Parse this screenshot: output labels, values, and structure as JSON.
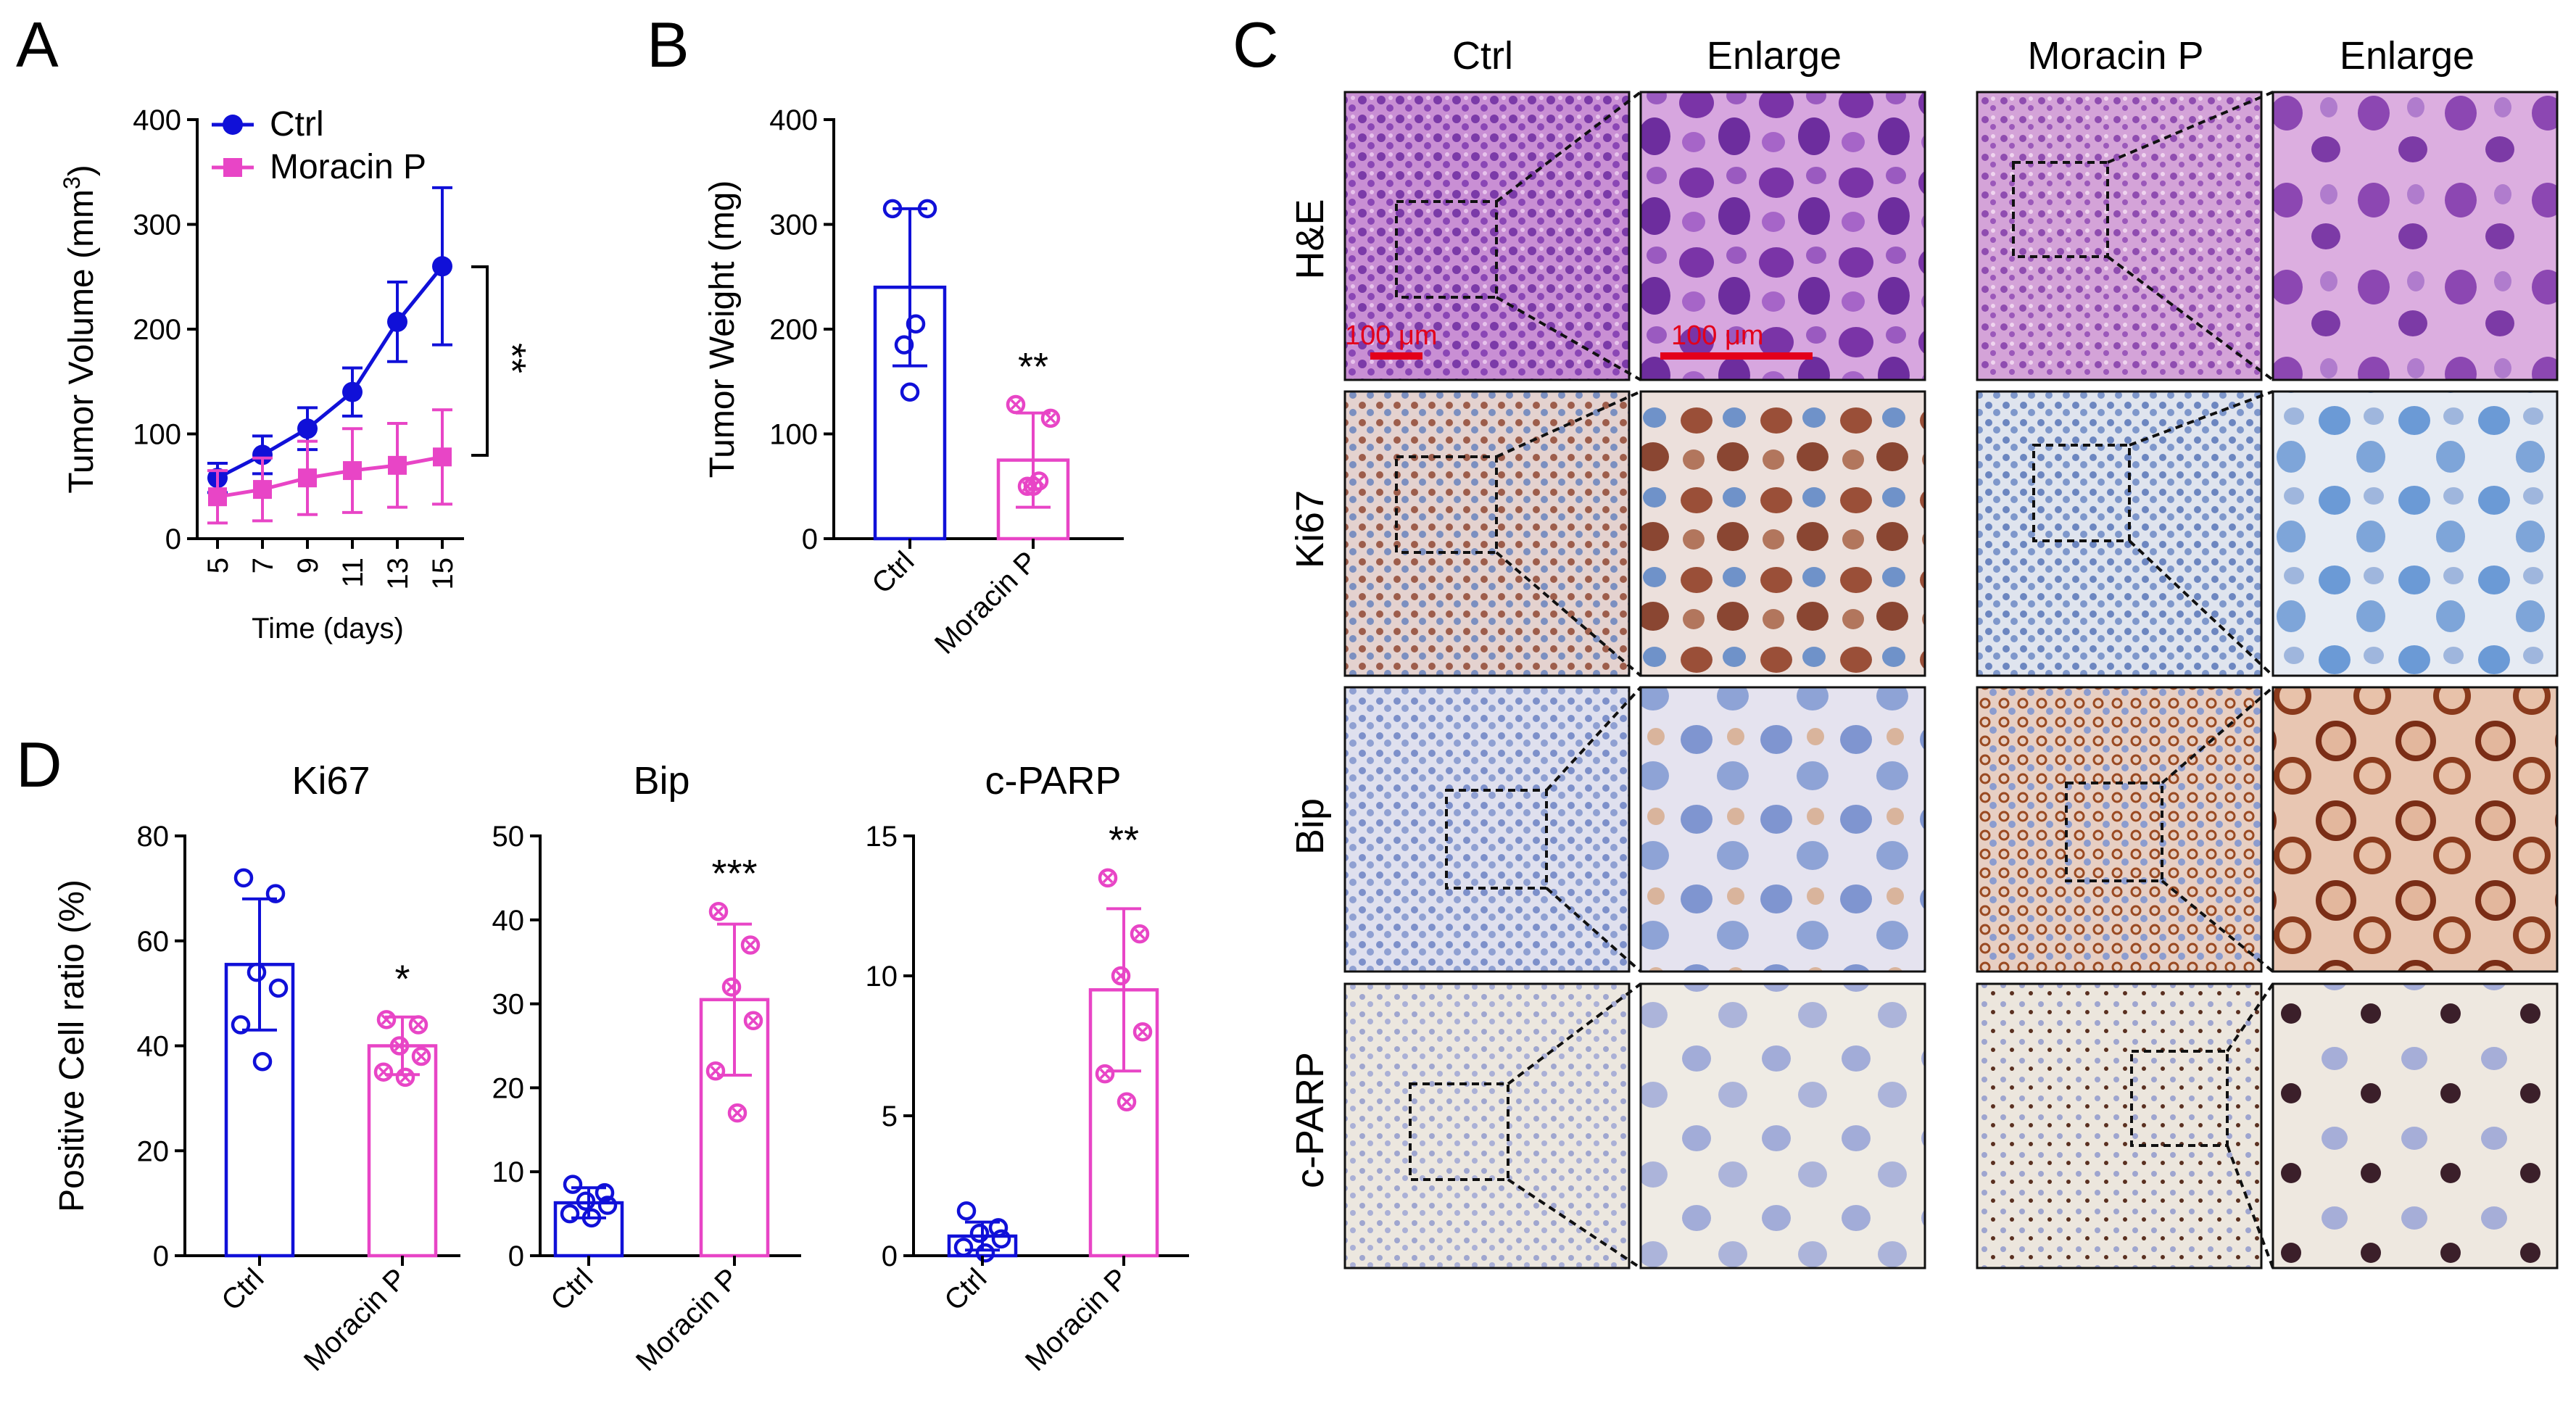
{
  "panels": {
    "a": "A",
    "b": "B",
    "c": "C",
    "d": "D"
  },
  "colors": {
    "ctrl": "#1010d8",
    "moracin": "#e845c6",
    "scale": "#e3001b"
  },
  "chart_data": [
    {
      "id": "A",
      "type": "line",
      "x": [
        5,
        7,
        9,
        11,
        13,
        15
      ],
      "xticklabels": [
        "5",
        "7",
        "9",
        "11",
        "13",
        "15"
      ],
      "xlabel": "Time (days)",
      "ylabel": "Tumor Volume (mm",
      "ylabel_sup": "3",
      "ylabel_close": ")",
      "ylim": [
        0,
        400
      ],
      "yticks": [
        0,
        100,
        200,
        300,
        400
      ],
      "yticklabels": [
        "0",
        "100",
        "200",
        "300",
        "400"
      ],
      "series": [
        {
          "name": "Ctrl",
          "values": [
            58,
            80,
            105,
            140,
            207,
            260
          ],
          "err": [
            14,
            18,
            20,
            23,
            38,
            75
          ]
        },
        {
          "name": "Moracin P",
          "values": [
            40,
            47,
            58,
            65,
            70,
            78
          ],
          "err": [
            25,
            30,
            35,
            40,
            40,
            45
          ]
        }
      ],
      "significance": "**"
    },
    {
      "id": "B",
      "type": "bar",
      "categories": [
        "Ctrl",
        "Moracin P"
      ],
      "values": [
        240,
        75
      ],
      "err": [
        75,
        45
      ],
      "points": [
        [
          315,
          315,
          205,
          185,
          140
        ],
        [
          128,
          115,
          55,
          50,
          50
        ]
      ],
      "ylabel": "Tumor Weight (mg)",
      "ylim": [
        0,
        400
      ],
      "yticks": [
        0,
        100,
        200,
        300,
        400
      ],
      "yticklabels": [
        "0",
        "100",
        "200",
        "300",
        "400"
      ],
      "significance": "**"
    },
    {
      "id": "D-Ki67",
      "type": "bar",
      "title": "Ki67",
      "categories": [
        "Ctrl",
        "Moracin P"
      ],
      "values": [
        55.5,
        40
      ],
      "err": [
        12.5,
        5.5
      ],
      "points": [
        [
          72,
          69,
          54,
          51,
          44,
          37
        ],
        [
          45,
          44,
          40,
          38,
          35,
          34
        ]
      ],
      "ylabel": "Positive Cell ratio (%)",
      "ylim": [
        0,
        80
      ],
      "yticks": [
        0,
        20,
        40,
        60,
        80
      ],
      "yticklabels": [
        "0",
        "20",
        "40",
        "60",
        "80"
      ],
      "significance": "*"
    },
    {
      "id": "D-Bip",
      "type": "bar",
      "title": "Bip",
      "categories": [
        "Ctrl",
        "Moracin P"
      ],
      "values": [
        6.3,
        30.5
      ],
      "err": [
        1.8,
        9
      ],
      "points": [
        [
          8.5,
          7.5,
          6.5,
          6.0,
          5.0,
          4.5
        ],
        [
          41,
          37,
          32,
          28,
          22,
          17
        ]
      ],
      "ylim": [
        0,
        50
      ],
      "yticks": [
        0,
        10,
        20,
        30,
        40,
        50
      ],
      "yticklabels": [
        "0",
        "10",
        "20",
        "30",
        "40",
        "50"
      ],
      "significance": "***"
    },
    {
      "id": "D-cPARP",
      "type": "bar",
      "title": "c-PARP",
      "categories": [
        "Ctrl",
        "Moracin P"
      ],
      "values": [
        0.7,
        9.5
      ],
      "err": [
        0.5,
        2.9
      ],
      "points": [
        [
          1.6,
          1.0,
          0.8,
          0.6,
          0.3,
          0.1
        ],
        [
          13.5,
          11.5,
          10.0,
          8.0,
          6.5,
          5.5
        ]
      ],
      "ylim": [
        0,
        15
      ],
      "yticks": [
        0,
        5,
        10,
        15
      ],
      "yticklabels": [
        "0",
        "5",
        "10",
        "15"
      ],
      "significance": "**"
    }
  ],
  "micrographs": {
    "columns": [
      "Ctrl",
      "Enlarge",
      "Moracin P",
      "Enlarge"
    ],
    "rows": [
      "H&E",
      "Ki67",
      "Bip",
      "c-PARP"
    ],
    "scale_bars": [
      "100 μm",
      "100 μm"
    ]
  }
}
